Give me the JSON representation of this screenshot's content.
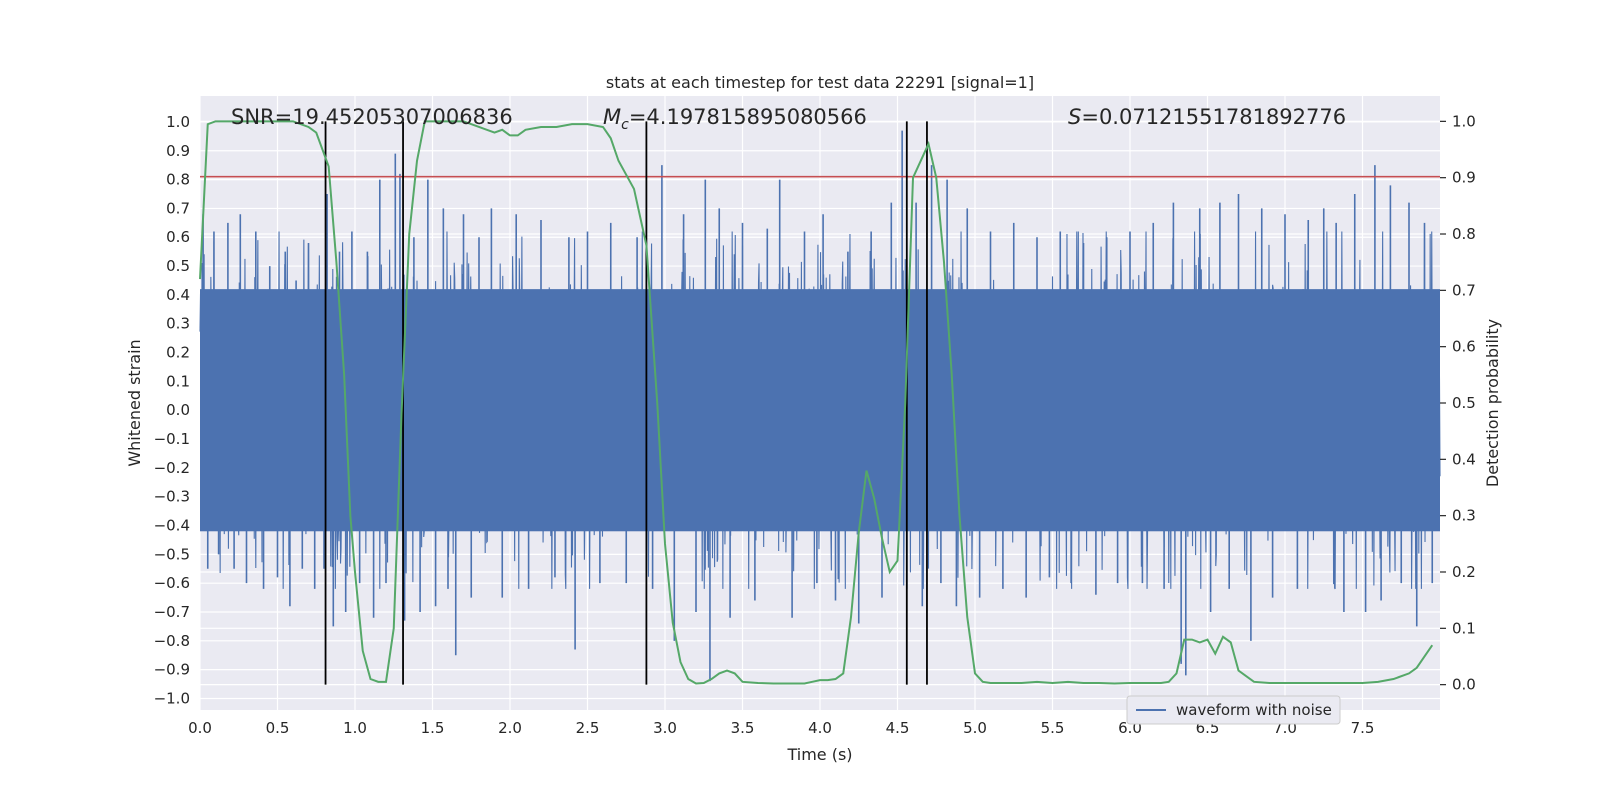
{
  "chart_data": {
    "type": "line",
    "title": "stats at each timestep for test data 22291 [signal=1]",
    "xlabel": "Time (s)",
    "ylabel_left": "Whitened strain",
    "ylabel_right": "Detection probability",
    "xlim": [
      0.0,
      8.0
    ],
    "ylim_left": [
      -1.04,
      1.09
    ],
    "ylim_right": [
      -0.045,
      1.045
    ],
    "x_ticks": [
      "0.0",
      "0.5",
      "1.0",
      "1.5",
      "2.0",
      "2.5",
      "3.0",
      "3.5",
      "4.0",
      "4.5",
      "5.0",
      "5.5",
      "6.0",
      "6.5",
      "7.0",
      "7.5"
    ],
    "y_ticks_left": [
      "1.0",
      "0.9",
      "0.8",
      "0.7",
      "0.6",
      "0.5",
      "0.4",
      "0.3",
      "0.2",
      "0.1",
      "0.0",
      "−0.1",
      "−0.2",
      "−0.3",
      "−0.4",
      "−0.5",
      "−0.6",
      "−0.7",
      "−0.8",
      "−0.9",
      "−1.0"
    ],
    "y_ticks_right": [
      "1.0",
      "0.9",
      "0.8",
      "0.7",
      "0.6",
      "0.5",
      "0.4",
      "0.3",
      "0.2",
      "0.1",
      "0.0"
    ],
    "annotations": [
      {
        "id": "snr",
        "text": "SNR=19.45205307006836",
        "x": 0.2
      },
      {
        "id": "mc",
        "symbol": "M",
        "subscript": "c",
        "text": "=4.197815895080566",
        "x": 2.6
      },
      {
        "id": "s",
        "symbol": "S",
        "text": "=0.07121551781892776",
        "x": 5.6
      }
    ],
    "legend": {
      "label": "waveform with noise",
      "position": "lower-right"
    },
    "threshold_strain": 0.81,
    "event_times": [
      0.81,
      1.31,
      2.88,
      4.56,
      4.69
    ],
    "event_line_range_prob": [
      0.0,
      1.0
    ],
    "waveform_with_noise": {
      "noise_std": 0.17,
      "core_band": [
        -0.42,
        0.42
      ],
      "spikes": [
        [
          0.02,
          0.68
        ],
        [
          0.05,
          -0.55
        ],
        [
          0.09,
          0.62
        ],
        [
          0.12,
          -0.5
        ],
        [
          0.18,
          0.65
        ],
        [
          0.22,
          -0.55
        ],
        [
          0.26,
          0.68
        ],
        [
          0.3,
          -0.6
        ],
        [
          0.36,
          0.62
        ],
        [
          0.41,
          -0.62
        ],
        [
          0.45,
          0.5
        ],
        [
          0.5,
          -0.58
        ],
        [
          0.55,
          0.55
        ],
        [
          0.58,
          -0.68
        ],
        [
          0.62,
          0.45
        ],
        [
          0.66,
          -0.55
        ],
        [
          0.7,
          0.58
        ],
        [
          0.74,
          -0.62
        ],
        [
          0.8,
          -0.55
        ],
        [
          0.82,
          0.75
        ],
        [
          0.86,
          -0.75
        ],
        [
          0.9,
          0.55
        ],
        [
          0.94,
          -0.7
        ],
        [
          0.98,
          0.62
        ],
        [
          1.03,
          -0.6
        ],
        [
          1.08,
          0.55
        ],
        [
          1.12,
          -0.72
        ],
        [
          1.16,
          0.8
        ],
        [
          1.2,
          -0.6
        ],
        [
          1.26,
          0.89
        ],
        [
          1.29,
          0.82
        ],
        [
          1.32,
          -0.73
        ],
        [
          1.38,
          0.6
        ],
        [
          1.42,
          -0.7
        ],
        [
          1.47,
          0.8
        ],
        [
          1.52,
          -0.68
        ],
        [
          1.57,
          0.7
        ],
        [
          1.6,
          -0.62
        ],
        [
          1.65,
          -0.85
        ],
        [
          1.7,
          0.68
        ],
        [
          1.75,
          -0.65
        ],
        [
          1.8,
          0.6
        ],
        [
          1.88,
          0.7
        ],
        [
          1.95,
          -0.65
        ],
        [
          2.04,
          0.68
        ],
        [
          2.12,
          -0.62
        ],
        [
          2.2,
          0.66
        ],
        [
          2.29,
          -0.58
        ],
        [
          2.38,
          0.6
        ],
        [
          2.42,
          -0.83
        ],
        [
          2.5,
          0.62
        ],
        [
          2.58,
          -0.6
        ],
        [
          2.65,
          0.65
        ],
        [
          2.75,
          -0.6
        ],
        [
          2.82,
          0.6
        ],
        [
          2.92,
          -0.62
        ],
        [
          2.98,
          0.85
        ],
        [
          3.06,
          -0.8
        ],
        [
          3.12,
          0.68
        ],
        [
          3.2,
          -0.7
        ],
        [
          3.26,
          0.8
        ],
        [
          3.29,
          -0.94
        ],
        [
          3.35,
          0.7
        ],
        [
          3.42,
          -0.72
        ],
        [
          3.5,
          0.65
        ],
        [
          3.58,
          -0.66
        ],
        [
          3.66,
          0.63
        ],
        [
          3.74,
          0.8
        ],
        [
          3.82,
          -0.72
        ],
        [
          3.9,
          0.62
        ],
        [
          3.98,
          -0.6
        ],
        [
          4.02,
          0.68
        ],
        [
          4.1,
          -0.66
        ],
        [
          4.18,
          0.55
        ],
        [
          4.25,
          -0.74
        ],
        [
          4.33,
          0.62
        ],
        [
          4.4,
          -0.65
        ],
        [
          4.46,
          0.72
        ],
        [
          4.53,
          0.97
        ],
        [
          4.56,
          -0.62
        ],
        [
          4.62,
          0.72
        ],
        [
          4.66,
          -0.68
        ],
        [
          4.72,
          0.85
        ],
        [
          4.78,
          -0.6
        ],
        [
          4.82,
          0.8
        ],
        [
          4.88,
          -0.68
        ],
        [
          4.95,
          0.7
        ],
        [
          5.03,
          -0.65
        ],
        [
          5.1,
          0.62
        ],
        [
          5.18,
          -0.62
        ],
        [
          5.25,
          0.65
        ],
        [
          5.33,
          -0.65
        ],
        [
          5.4,
          0.6
        ],
        [
          5.48,
          -0.58
        ],
        [
          5.55,
          0.62
        ],
        [
          5.62,
          -0.6
        ],
        [
          5.7,
          0.58
        ],
        [
          5.78,
          -0.64
        ],
        [
          5.85,
          0.6
        ],
        [
          5.92,
          -0.6
        ],
        [
          6.0,
          0.62
        ],
        [
          6.08,
          -0.6
        ],
        [
          6.15,
          0.65
        ],
        [
          6.22,
          -0.62
        ],
        [
          6.28,
          0.72
        ],
        [
          6.33,
          -0.88
        ],
        [
          6.36,
          -0.92
        ],
        [
          6.45,
          0.7
        ],
        [
          6.52,
          -0.7
        ],
        [
          6.58,
          0.72
        ],
        [
          6.64,
          -0.62
        ],
        [
          6.7,
          0.75
        ],
        [
          6.78,
          -0.8
        ],
        [
          6.85,
          0.7
        ],
        [
          6.92,
          -0.65
        ],
        [
          7.0,
          0.68
        ],
        [
          7.08,
          -0.62
        ],
        [
          7.15,
          0.66
        ],
        [
          7.25,
          0.7
        ],
        [
          7.33,
          0.65
        ],
        [
          7.38,
          -0.7
        ],
        [
          7.45,
          0.75
        ],
        [
          7.52,
          -0.7
        ],
        [
          7.58,
          0.85
        ],
        [
          7.62,
          -0.66
        ],
        [
          7.68,
          0.78
        ],
        [
          7.75,
          -0.6
        ],
        [
          7.8,
          0.72
        ],
        [
          7.85,
          -0.75
        ],
        [
          7.9,
          0.65
        ],
        [
          7.95,
          -0.6
        ]
      ]
    },
    "detection_probability": {
      "x": [
        0.0,
        0.05,
        0.1,
        0.2,
        0.3,
        0.4,
        0.5,
        0.6,
        0.7,
        0.75,
        0.83,
        0.88,
        0.93,
        0.97,
        1.0,
        1.05,
        1.1,
        1.15,
        1.2,
        1.25,
        1.3,
        1.35,
        1.4,
        1.45,
        1.5,
        1.6,
        1.7,
        1.8,
        1.9,
        1.95,
        2.0,
        2.05,
        2.1,
        2.2,
        2.3,
        2.4,
        2.5,
        2.6,
        2.65,
        2.7,
        2.8,
        2.88,
        2.95,
        3.0,
        3.05,
        3.1,
        3.15,
        3.2,
        3.25,
        3.3,
        3.35,
        3.4,
        3.45,
        3.5,
        3.6,
        3.7,
        3.8,
        3.9,
        3.95,
        4.0,
        4.05,
        4.1,
        4.15,
        4.2,
        4.25,
        4.3,
        4.35,
        4.4,
        4.45,
        4.5,
        4.55,
        4.6,
        4.65,
        4.7,
        4.75,
        4.8,
        4.85,
        4.9,
        4.95,
        5.0,
        5.05,
        5.1,
        5.2,
        5.3,
        5.4,
        5.5,
        5.6,
        5.7,
        5.8,
        5.9,
        6.0,
        6.1,
        6.2,
        6.25,
        6.3,
        6.35,
        6.4,
        6.45,
        6.5,
        6.55,
        6.6,
        6.65,
        6.7,
        6.75,
        6.8,
        6.9,
        7.0,
        7.1,
        7.2,
        7.3,
        7.4,
        7.5,
        7.6,
        7.7,
        7.8,
        7.85,
        7.9,
        7.95
      ],
      "y": [
        0.72,
        0.995,
        1.0,
        1.0,
        1.0,
        1.0,
        1.0,
        1.0,
        0.99,
        0.98,
        0.92,
        0.75,
        0.55,
        0.3,
        0.2,
        0.06,
        0.01,
        0.005,
        0.005,
        0.1,
        0.48,
        0.8,
        0.93,
        1.0,
        1.0,
        1.0,
        1.0,
        0.99,
        0.98,
        0.985,
        0.975,
        0.975,
        0.985,
        0.99,
        0.99,
        0.995,
        0.995,
        0.99,
        0.97,
        0.93,
        0.88,
        0.78,
        0.5,
        0.25,
        0.11,
        0.04,
        0.01,
        0.002,
        0.003,
        0.01,
        0.02,
        0.025,
        0.02,
        0.005,
        0.003,
        0.002,
        0.002,
        0.002,
        0.005,
        0.008,
        0.008,
        0.01,
        0.02,
        0.12,
        0.27,
        0.38,
        0.33,
        0.26,
        0.2,
        0.22,
        0.5,
        0.9,
        0.93,
        0.96,
        0.9,
        0.75,
        0.55,
        0.3,
        0.12,
        0.02,
        0.005,
        0.003,
        0.003,
        0.003,
        0.005,
        0.003,
        0.005,
        0.003,
        0.003,
        0.002,
        0.003,
        0.003,
        0.003,
        0.005,
        0.02,
        0.08,
        0.08,
        0.075,
        0.08,
        0.055,
        0.085,
        0.075,
        0.025,
        0.015,
        0.005,
        0.003,
        0.003,
        0.003,
        0.003,
        0.003,
        0.003,
        0.003,
        0.005,
        0.01,
        0.02,
        0.03,
        0.05,
        0.07
      ]
    }
  }
}
